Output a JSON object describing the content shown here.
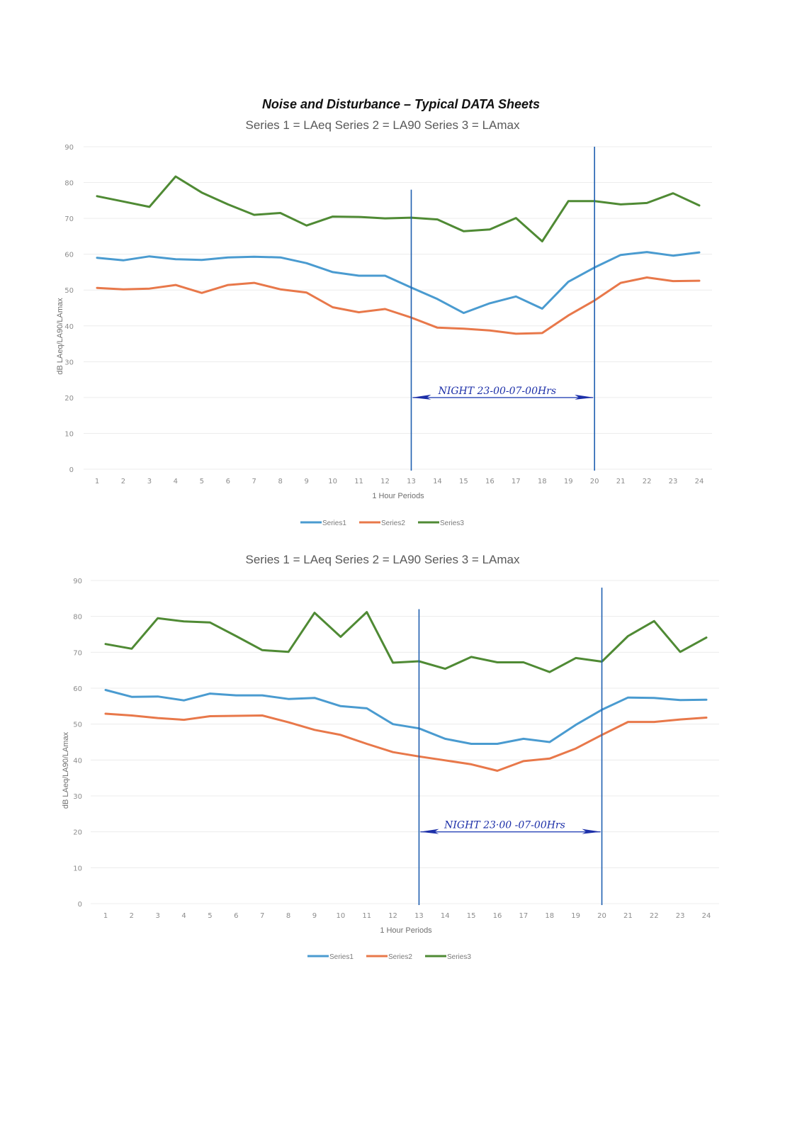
{
  "page": {
    "title": "Noise and Disturbance – Typical DATA Sheets"
  },
  "chart_data": [
    {
      "type": "line",
      "title": "Series 1 = LAeq   Series 2 = LA90   Series 3 = LAmax",
      "xlabel": "1 Hour Periods",
      "ylabel": "dB LAeq/LA90/LAmax",
      "ylim": [
        0,
        90
      ],
      "yticks": [
        "0",
        "10",
        "20",
        "30",
        "40",
        "50",
        "60",
        "70",
        "80",
        "90"
      ],
      "grid": true,
      "legend_position": "bottom",
      "categories": [
        "1",
        "2",
        "3",
        "4",
        "5",
        "6",
        "7",
        "8",
        "9",
        "10",
        "11",
        "12",
        "13",
        "14",
        "15",
        "16",
        "17",
        "18",
        "19",
        "20",
        "21",
        "22",
        "23",
        "24"
      ],
      "series": [
        {
          "name": "Series1",
          "color": "#4a9bd0",
          "values": [
            59.0,
            58.3,
            59.4,
            58.6,
            58.4,
            59.1,
            59.3,
            59.1,
            57.5,
            55.0,
            54.0,
            54.0,
            50.7,
            47.5,
            43.6,
            46.3,
            48.2,
            44.8,
            52.3,
            56.3,
            59.8,
            60.6,
            59.6,
            60.5
          ]
        },
        {
          "name": "Series2",
          "color": "#e8784a",
          "values": [
            50.6,
            50.2,
            50.4,
            51.4,
            49.2,
            51.4,
            52.0,
            50.2,
            49.3,
            45.2,
            43.8,
            44.7,
            42.3,
            39.5,
            39.2,
            38.7,
            37.8,
            38.0,
            42.9,
            47.1,
            52.0,
            53.5,
            52.5,
            52.6
          ]
        },
        {
          "name": "Series3",
          "color": "#4f8a34",
          "values": [
            76.2,
            74.7,
            73.2,
            81.7,
            77.2,
            73.9,
            71.0,
            71.5,
            68.0,
            70.5,
            70.4,
            70.0,
            70.2,
            69.7,
            66.4,
            66.9,
            70.1,
            63.6,
            74.8,
            74.8,
            73.9,
            74.3,
            77.0,
            73.6
          ]
        }
      ],
      "annotations": {
        "night_start_period": 13,
        "night_end_period": 20,
        "night_label": "NIGHT 23-00-07-00Hrs",
        "arrow_level": 20,
        "start_line_top": 78,
        "end_line_top": 90
      }
    },
    {
      "type": "line",
      "title": "Series 1 = LAeq   Series 2 = LA90   Series 3 = LAmax",
      "xlabel": "1 Hour Periods",
      "ylabel": "dB LAeq/LA90/LAmax",
      "ylim": [
        0,
        90
      ],
      "yticks": [
        "0",
        "10",
        "20",
        "30",
        "40",
        "50",
        "60",
        "70",
        "80",
        "90"
      ],
      "grid": true,
      "legend_position": "bottom",
      "categories": [
        "1",
        "2",
        "3",
        "4",
        "5",
        "6",
        "7",
        "8",
        "9",
        "10",
        "11",
        "12",
        "13",
        "14",
        "15",
        "16",
        "17",
        "18",
        "19",
        "20",
        "21",
        "22",
        "23",
        "24"
      ],
      "series": [
        {
          "name": "Series1",
          "color": "#4a9bd0",
          "values": [
            59.5,
            57.6,
            57.7,
            56.6,
            58.5,
            58.0,
            58.0,
            57.0,
            57.3,
            55.0,
            54.4,
            50.0,
            48.8,
            45.9,
            44.5,
            44.5,
            45.9,
            45.0,
            49.8,
            54.0,
            57.4,
            57.3,
            56.7,
            56.8
          ]
        },
        {
          "name": "Series2",
          "color": "#e8784a",
          "values": [
            52.9,
            52.4,
            51.7,
            51.2,
            52.2,
            52.3,
            52.4,
            50.5,
            48.4,
            47.0,
            44.5,
            42.2,
            41.0,
            39.9,
            38.8,
            37.0,
            39.7,
            40.4,
            43.2,
            47.0,
            50.6,
            50.6,
            51.3,
            51.8
          ]
        },
        {
          "name": "Series3",
          "color": "#4f8a34",
          "values": [
            72.3,
            71.0,
            79.5,
            78.6,
            78.3,
            74.5,
            70.6,
            70.1,
            81.0,
            74.3,
            81.2,
            67.1,
            67.5,
            65.4,
            68.7,
            67.2,
            67.2,
            64.5,
            68.4,
            67.4,
            74.5,
            78.7,
            70.1,
            74.1
          ]
        }
      ],
      "annotations": {
        "night_start_period": 13,
        "night_end_period": 20,
        "night_label": "NIGHT 23·00 -07-00Hrs",
        "arrow_level": 20,
        "start_line_top": 82,
        "end_line_top": 88
      }
    }
  ]
}
